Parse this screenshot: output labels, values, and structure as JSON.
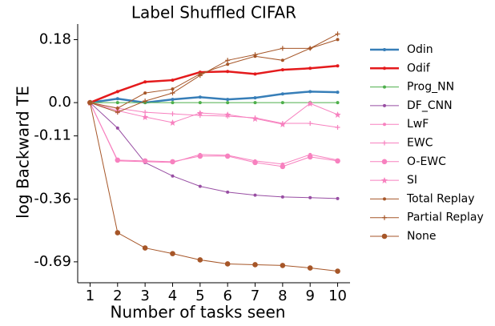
{
  "chart_data": {
    "type": "line",
    "title": "Label Shuffled CIFAR",
    "xlabel": "Number of tasks seen",
    "ylabel": "log Backward TE",
    "yscale": "exp",
    "x": [
      1,
      2,
      3,
      4,
      5,
      6,
      7,
      8,
      9,
      10
    ],
    "xlim": [
      0.55,
      10.45
    ],
    "xticks": [
      1,
      2,
      3,
      4,
      5,
      6,
      7,
      8,
      9,
      10
    ],
    "ylim": [
      -0.83,
      0.22
    ],
    "yticks": [
      0.18,
      {
        "value": 0,
        "label": "0.0"
      },
      -0.11,
      -0.36,
      -0.69
    ],
    "legend": "right",
    "series": [
      {
        "name": "Odin",
        "color": "#377eb8",
        "marker": "line",
        "values": [
          0,
          0.012,
          0,
          0.01,
          0.017,
          0.01,
          0.015,
          0.027,
          0.034,
          0.032
        ]
      },
      {
        "name": "Odif",
        "color": "#e41a1c",
        "marker": "line",
        "values": [
          0,
          0.034,
          0.063,
          0.068,
          0.091,
          0.093,
          0.086,
          0.098,
          0.102,
          0.109
        ]
      },
      {
        "name": "Prog_NN",
        "color": "#4daf4a",
        "marker": "o",
        "values": [
          0,
          0,
          0,
          0,
          0,
          0,
          0,
          0,
          0,
          0
        ]
      },
      {
        "name": "DF_CNN",
        "color": "#984ea3",
        "marker": "o",
        "values": [
          0,
          -0.083,
          -0.208,
          -0.261,
          -0.304,
          -0.329,
          -0.342,
          -0.35,
          -0.353,
          -0.357
        ]
      },
      {
        "name": "LwF",
        "color": "#f781bf",
        "marker": "o",
        "values": [
          0,
          -0.2015,
          -0.2046,
          -0.2076,
          -0.1773,
          -0.1803,
          -0.2015,
          -0.2138,
          -0.1773,
          -0.1985
        ]
      },
      {
        "name": "EWC",
        "color": "#f781bf",
        "marker": "+",
        "values": [
          0,
          -0.0177,
          -0.0305,
          -0.0356,
          -0.0408,
          -0.0434,
          -0.0487,
          -0.0672,
          -0.0672,
          -0.0806
        ]
      },
      {
        "name": "O-EWC",
        "color": "#f781bf",
        "marker": "O",
        "values": [
          0,
          -0.1985,
          -0.2015,
          -0.2046,
          -0.1833,
          -0.1833,
          -0.2076,
          -0.2231,
          -0.1863,
          -0.2015
        ]
      },
      {
        "name": "SI",
        "color": "#f781bf",
        "marker": "*",
        "values": [
          0,
          -0.0253,
          -0.046,
          -0.0645,
          -0.033,
          -0.0382,
          -0.0513,
          -0.0699,
          -0.0025,
          -0.0382
        ]
      },
      {
        "name": "Total Replay",
        "color": "#a65628",
        "marker": "o",
        "values": [
          0,
          -0.0177,
          0.0296,
          0.0416,
          0.0862,
          0.1133,
          0.1354,
          0.1244,
          0.157,
          0.1802
        ]
      },
      {
        "name": "Partial Replay",
        "color": "#a65628",
        "marker": "+",
        "values": [
          0,
          -0.0305,
          0.005,
          0.0296,
          0.0816,
          0.1244,
          0.1398,
          0.157,
          0.157,
          0.1947
        ]
      },
      {
        "name": "None",
        "color": "#a65628",
        "marker": "O",
        "values": [
          0,
          -0.523,
          -0.607,
          -0.64,
          -0.678,
          -0.703,
          -0.708,
          -0.713,
          -0.729,
          -0.75
        ]
      }
    ]
  }
}
